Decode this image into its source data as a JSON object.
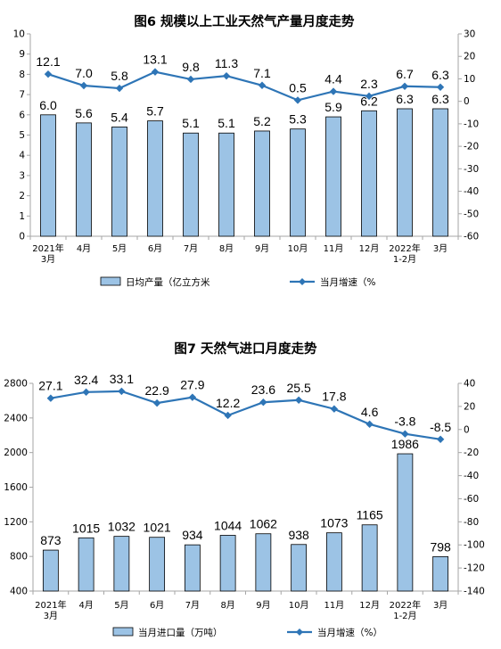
{
  "chart_data": [
    {
      "type": "bar+line",
      "title": "图6  规模以上工业天然气产量月度走势",
      "categories": [
        [
          "2021年",
          "3月"
        ],
        [
          "4月"
        ],
        [
          "5月"
        ],
        [
          "6月"
        ],
        [
          "7月"
        ],
        [
          "8月"
        ],
        [
          "9月"
        ],
        [
          "10月"
        ],
        [
          "11月"
        ],
        [
          "12月"
        ],
        [
          "2022年",
          "1-2月"
        ],
        [
          "3月"
        ]
      ],
      "bar_series": {
        "name": "日均产量（亿立方米",
        "values": [
          6.0,
          5.6,
          5.4,
          5.7,
          5.1,
          5.1,
          5.2,
          5.3,
          5.9,
          6.2,
          6.3,
          6.3
        ],
        "labels": [
          "6.0",
          "5.6",
          "5.4",
          "5.7",
          "5.1",
          "5.1",
          "5.2",
          "5.3",
          "5.9",
          "6.2",
          "6.3",
          "6.3"
        ],
        "color": "#9cc3e5",
        "axis": "left"
      },
      "line_series": {
        "name": "当月增速（%",
        "values": [
          12.1,
          7.0,
          5.8,
          13.1,
          9.8,
          11.3,
          7.1,
          0.5,
          4.4,
          2.3,
          6.7,
          6.3
        ],
        "labels": [
          "12.1",
          "7.0",
          "5.8",
          "13.1",
          "9.8",
          "11.3",
          "7.1",
          "0.5",
          "4.4",
          "2.3",
          "6.7",
          "6.3"
        ],
        "color": "#2e75b6",
        "axis": "right"
      },
      "y_left": {
        "lim": [
          0,
          10
        ],
        "ticks": [
          "0",
          "1",
          "2",
          "3",
          "4",
          "5",
          "6",
          "7",
          "8",
          "9",
          "10"
        ]
      },
      "y_right": {
        "lim": [
          -60,
          30
        ],
        "ticks": [
          "-60",
          "-50",
          "-40",
          "-30",
          "-20",
          "-10",
          "0",
          "10",
          "20",
          "30"
        ]
      },
      "legend_position": "bottom",
      "grid": false
    },
    {
      "type": "bar+line",
      "title": "图7  天然气进口月度走势",
      "categories": [
        [
          "2021年",
          "3月"
        ],
        [
          "4月"
        ],
        [
          "5月"
        ],
        [
          "6月"
        ],
        [
          "7月"
        ],
        [
          "8月"
        ],
        [
          "9月"
        ],
        [
          "10月"
        ],
        [
          "11月"
        ],
        [
          "12月"
        ],
        [
          "2022年",
          "1-2月"
        ],
        [
          "3月"
        ]
      ],
      "bar_series": {
        "name": "当月进口量（万吨）",
        "values": [
          873,
          1015,
          1032,
          1021,
          934,
          1044,
          1062,
          938,
          1073,
          1165,
          1986,
          798
        ],
        "labels": [
          "873",
          "1015",
          "1032",
          "1021",
          "934",
          "1044",
          "1062",
          "938",
          "1073",
          "1165",
          "1986",
          "798"
        ],
        "color": "#9cc3e5",
        "axis": "left"
      },
      "line_series": {
        "name": "当月增速（%）",
        "values": [
          27.1,
          32.4,
          33.1,
          22.9,
          27.9,
          12.2,
          23.6,
          25.5,
          17.8,
          4.6,
          -3.8,
          -8.5
        ],
        "labels": [
          "27.1",
          "32.4",
          "33.1",
          "22.9",
          "27.9",
          "12.2",
          "23.6",
          "25.5",
          "17.8",
          "4.6",
          "-3.8",
          "-8.5"
        ],
        "color": "#2e75b6",
        "axis": "right"
      },
      "y_left": {
        "lim": [
          400,
          2800
        ],
        "ticks": [
          "400",
          "800",
          "1200",
          "1600",
          "2000",
          "2400",
          "2800"
        ]
      },
      "y_right": {
        "lim": [
          -140,
          40
        ],
        "ticks": [
          "-140",
          "-120",
          "-100",
          "-80",
          "-60",
          "-40",
          "-20",
          "0",
          "20",
          "40"
        ]
      },
      "legend_position": "bottom",
      "grid": false
    }
  ]
}
